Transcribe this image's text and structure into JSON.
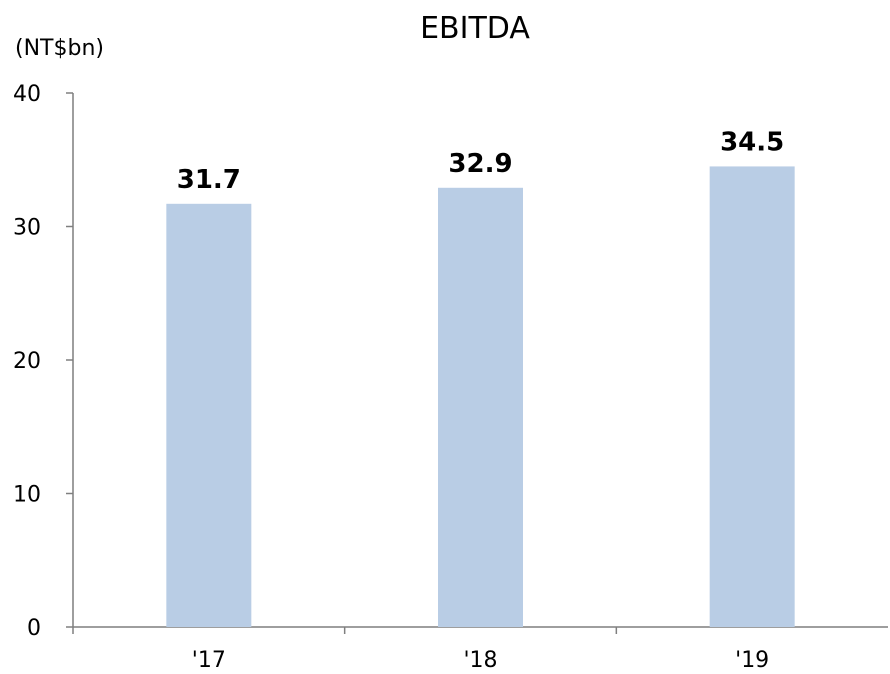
{
  "chart_data": {
    "type": "bar",
    "title": "EBITDA",
    "unit_label": "(NT$bn)",
    "categories": [
      "'17",
      "'18",
      "'19"
    ],
    "values": [
      31.7,
      32.9,
      34.5
    ],
    "value_labels": [
      "31.7",
      "32.9",
      "34.5"
    ],
    "ylim": [
      0,
      40
    ],
    "yticks": [
      0,
      10,
      20,
      30,
      40
    ],
    "ytick_labels": [
      "0",
      "10",
      "20",
      "30",
      "40"
    ],
    "grid": false,
    "legend": "none",
    "bar_color": "#b9cde5"
  }
}
